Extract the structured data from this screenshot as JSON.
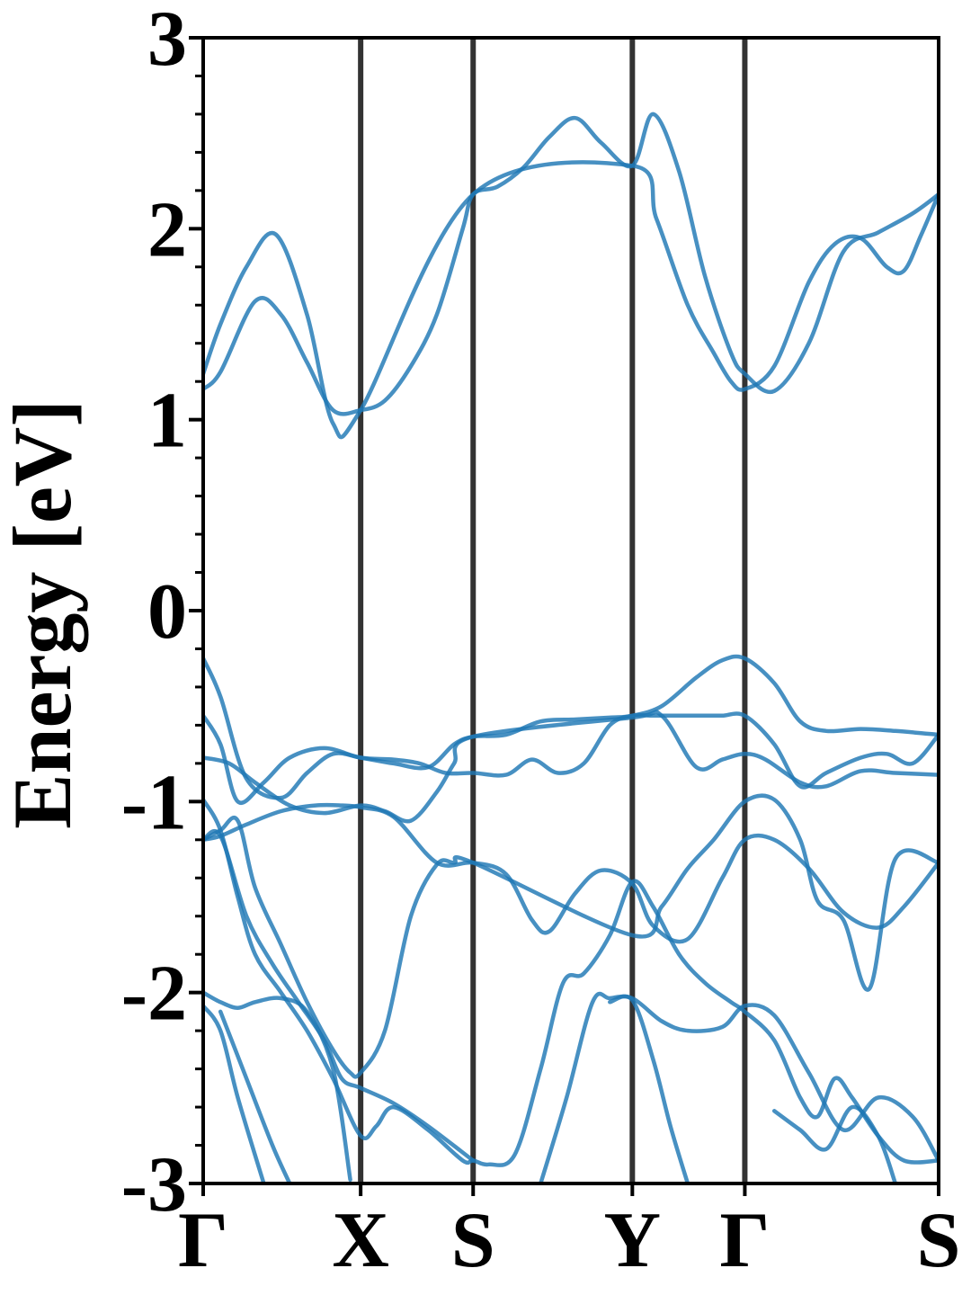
{
  "chart_data": {
    "type": "line",
    "ylabel": "Energy [eV]",
    "ylim": [
      -3,
      3
    ],
    "xlim": [
      0,
      4.25
    ],
    "yticks": [
      -3,
      -2,
      -1,
      0,
      1,
      2,
      3
    ],
    "yticklabels": [
      "-3",
      "-2",
      "-1",
      "0",
      "1",
      "2",
      "3"
    ],
    "k_points": [
      {
        "label": "Γ",
        "x": 0.0
      },
      {
        "label": "X",
        "x": 0.91
      },
      {
        "label": "S",
        "x": 1.56
      },
      {
        "label": "Y",
        "x": 2.48
      },
      {
        "label": "Γ",
        "x": 3.13
      },
      {
        "label": "S",
        "x": 4.25
      }
    ],
    "grid": false,
    "line_color": "#1f77b4",
    "divider_color": "#333333",
    "series": [
      {
        "x": [
          0,
          0.1,
          0.3,
          0.45,
          0.6,
          0.75,
          0.91,
          1.05,
          1.2,
          1.35,
          1.5,
          1.56,
          1.7,
          1.85,
          2.0,
          2.15,
          2.3,
          2.48,
          2.6,
          2.75,
          2.9,
          3.05,
          3.13,
          3.3,
          3.5,
          3.7,
          3.9,
          4.1,
          4.25
        ],
        "y": [
          1.16,
          1.25,
          1.62,
          1.55,
          1.3,
          1.05,
          1.05,
          1.1,
          1.28,
          1.55,
          2.0,
          2.18,
          2.22,
          2.32,
          2.48,
          2.58,
          2.45,
          2.33,
          2.6,
          2.3,
          1.75,
          1.35,
          1.24,
          1.15,
          1.4,
          1.88,
          1.98,
          2.08,
          2.18
        ]
      },
      {
        "x": [
          0,
          0.1,
          0.25,
          0.42,
          0.6,
          0.75,
          0.91,
          1.56,
          2.48,
          2.62,
          2.8,
          2.95,
          3.05,
          3.13,
          3.3,
          3.5,
          3.65,
          3.8,
          3.95,
          4.05,
          4.15,
          4.25
        ],
        "y": [
          1.24,
          1.5,
          1.8,
          1.97,
          1.55,
          0.98,
          1.05,
          2.18,
          2.33,
          2.05,
          1.6,
          1.35,
          1.2,
          1.16,
          1.28,
          1.72,
          1.92,
          1.95,
          1.8,
          1.78,
          1.97,
          2.18
        ]
      },
      {
        "x": [
          0,
          0.1,
          0.25,
          0.45,
          0.6,
          0.75,
          0.91,
          1.1,
          1.3,
          1.45,
          1.56,
          1.75,
          1.95,
          2.15,
          2.35,
          2.48,
          2.65,
          2.85,
          3.0,
          3.13,
          3.3,
          3.45,
          3.6,
          3.8,
          4.0,
          4.25
        ],
        "y": [
          -0.25,
          -0.45,
          -0.88,
          -0.98,
          -0.85,
          -0.75,
          -0.77,
          -0.8,
          -0.82,
          -0.7,
          -0.66,
          -0.65,
          -0.58,
          -0.57,
          -0.56,
          -0.55,
          -0.5,
          -0.35,
          -0.26,
          -0.25,
          -0.38,
          -0.58,
          -0.63,
          -0.62,
          -0.63,
          -0.65
        ]
      },
      {
        "x": [
          0,
          0.1,
          0.2,
          0.35,
          0.5,
          0.7,
          0.91,
          1.1,
          1.25,
          1.4,
          1.56,
          1.75,
          1.9,
          2.05,
          2.2,
          2.35,
          2.48,
          2.6,
          2.75,
          2.9,
          3.0,
          3.13,
          3.3,
          3.45,
          3.6,
          3.8,
          3.95,
          4.1,
          4.25
        ],
        "y": [
          -0.55,
          -0.7,
          -1.0,
          -0.9,
          -0.77,
          -0.72,
          -0.77,
          -0.78,
          -0.8,
          -0.85,
          -0.85,
          -0.86,
          -0.78,
          -0.85,
          -0.8,
          -0.6,
          -0.55,
          -0.55,
          -0.55,
          -0.55,
          -0.55,
          -0.55,
          -0.7,
          -0.92,
          -0.85,
          -0.77,
          -0.75,
          -0.8,
          -0.65
        ]
      },
      {
        "x": [
          0,
          0.15,
          0.3,
          0.5,
          0.7,
          0.91,
          1.05,
          1.2,
          1.35,
          1.45,
          1.56,
          2.48,
          2.65,
          2.85,
          3.0,
          3.13,
          3.25,
          3.45,
          3.6,
          3.8,
          4.0,
          4.25
        ],
        "y": [
          -0.77,
          -0.8,
          -0.9,
          -1.02,
          -1.06,
          -1.02,
          -1.05,
          -1.1,
          -0.95,
          -0.8,
          -0.66,
          -0.56,
          -0.55,
          -0.82,
          -0.78,
          -0.75,
          -0.78,
          -0.9,
          -0.92,
          -0.84,
          -0.85,
          -0.86
        ]
      },
      {
        "x": [
          0,
          0.1,
          0.25,
          0.45,
          0.65,
          0.8,
          0.91,
          1.1,
          1.35,
          1.56,
          1.75,
          1.9,
          2.0,
          2.15,
          2.3,
          2.48,
          2.6,
          2.8,
          3.0,
          3.13,
          3.3,
          3.5,
          3.7,
          3.9,
          4.05,
          4.25
        ],
        "y": [
          -1.2,
          -1.18,
          -1.12,
          -1.05,
          -1.02,
          -1.02,
          -1.03,
          -1.08,
          -1.32,
          -1.32,
          -1.38,
          -1.62,
          -1.68,
          -1.48,
          -1.36,
          -1.43,
          -1.65,
          -1.72,
          -1.4,
          -1.2,
          -1.2,
          -1.35,
          -1.58,
          -1.66,
          -1.55,
          -1.32
        ]
      },
      {
        "x": [
          0,
          0.1,
          0.2,
          0.3,
          0.45,
          0.6,
          0.75,
          0.85,
          0.91,
          1.05,
          1.2,
          1.35,
          1.45,
          1.56,
          2.48,
          2.65,
          2.8,
          2.95,
          3.13,
          3.3,
          3.45,
          3.55,
          3.7,
          3.85,
          4.0,
          4.25
        ],
        "y": [
          -1.2,
          -1.15,
          -1.1,
          -1.45,
          -1.75,
          -2.05,
          -2.3,
          -2.42,
          -2.42,
          -2.2,
          -1.6,
          -1.33,
          -1.32,
          -1.32,
          -1.7,
          -1.55,
          -1.35,
          -1.2,
          -1.0,
          -0.99,
          -1.2,
          -1.52,
          -1.62,
          -1.98,
          -1.3,
          -1.32
        ]
      },
      {
        "x": [
          0,
          0.1,
          0.2,
          0.3,
          0.45,
          0.6,
          0.75,
          0.91,
          1.0,
          1.1,
          1.3,
          1.5,
          1.56,
          1.65,
          1.8,
          1.95,
          2.08,
          2.2,
          2.35,
          2.48,
          2.6,
          2.75,
          2.9,
          3.05,
          3.13,
          3.3,
          3.45,
          3.55,
          3.65,
          3.75,
          3.9,
          4.05,
          4.25
        ],
        "y": [
          -0.99,
          -1.15,
          -1.5,
          -1.8,
          -2.0,
          -2.2,
          -2.45,
          -2.75,
          -2.7,
          -2.6,
          -2.72,
          -2.88,
          -2.88,
          -2.9,
          -2.85,
          -2.4,
          -1.95,
          -1.9,
          -1.7,
          -1.42,
          -1.55,
          -1.8,
          -1.95,
          -2.05,
          -2.1,
          -2.25,
          -2.55,
          -2.65,
          -2.45,
          -2.55,
          -2.75,
          -2.88,
          -2.88
        ]
      },
      {
        "x": [
          0,
          0.1,
          0.25,
          0.4,
          0.55,
          0.7,
          0.8,
          0.91,
          1.1,
          1.3,
          1.56
        ],
        "y": [
          -1.2,
          -1.18,
          -1.6,
          -1.85,
          -2.05,
          -2.25,
          -2.45,
          -2.5,
          -2.58,
          -2.7,
          -2.88
        ]
      },
      {
        "x": [
          1.95,
          2.1,
          2.25,
          2.35,
          2.48,
          2.65,
          2.8,
          3.0,
          3.13,
          3.3,
          3.5,
          3.7,
          3.9,
          4.1,
          4.25
        ],
        "y": [
          -3.0,
          -2.55,
          -2.05,
          -2.03,
          -2.03,
          -2.15,
          -2.2,
          -2.18,
          -2.07,
          -2.12,
          -2.42,
          -2.72,
          -2.55,
          -2.65,
          -2.88
        ]
      },
      {
        "x": [
          0,
          0.1,
          0.2,
          0.3,
          0.45,
          0.6,
          0.75,
          0.85
        ],
        "y": [
          -2.0,
          -2.05,
          -2.08,
          -2.05,
          -2.03,
          -2.1,
          -2.4,
          -2.98
        ]
      },
      {
        "x": [
          0,
          0.1,
          0.2,
          0.35
        ],
        "y": [
          -2.07,
          -2.2,
          -2.55,
          -3.0
        ]
      },
      {
        "x": [
          0.1,
          0.25,
          0.4,
          0.5
        ],
        "y": [
          -2.1,
          -2.45,
          -2.8,
          -3.0
        ]
      },
      {
        "x": [
          2.35,
          2.48,
          2.6,
          2.7,
          2.8
        ],
        "y": [
          -2.05,
          -2.04,
          -2.35,
          -2.7,
          -3.0
        ]
      },
      {
        "x": [
          3.3,
          3.45,
          3.6,
          3.75,
          3.9,
          4.0
        ],
        "y": [
          -2.62,
          -2.72,
          -2.82,
          -2.6,
          -2.75,
          -3.0
        ]
      }
    ]
  }
}
